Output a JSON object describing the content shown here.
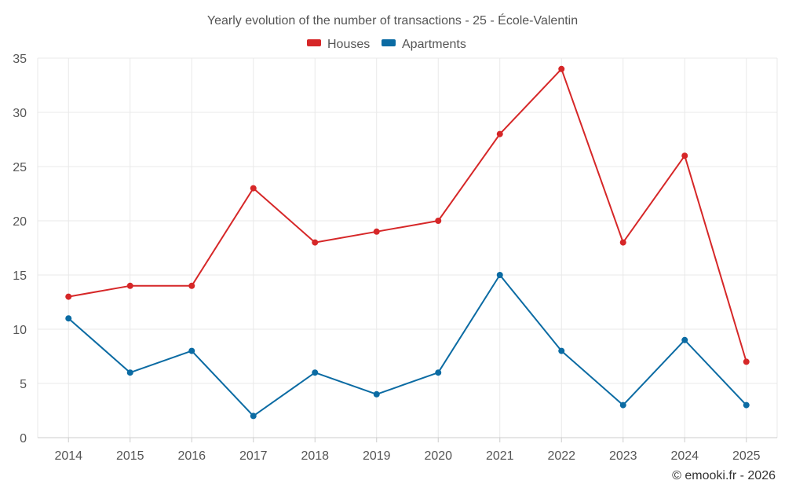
{
  "chart_data": {
    "type": "line",
    "title": "Yearly evolution of the number of transactions - 25 - École-Valentin",
    "xlabel": "",
    "ylabel": "",
    "categories": [
      "2014",
      "2015",
      "2016",
      "2017",
      "2018",
      "2019",
      "2020",
      "2021",
      "2022",
      "2023",
      "2024",
      "2025"
    ],
    "ylim": [
      0,
      35
    ],
    "yticks": [
      0,
      5,
      10,
      15,
      20,
      25,
      30,
      35
    ],
    "grid": true,
    "legend_position": "top-center",
    "series": [
      {
        "name": "Houses",
        "color": "#d62728",
        "values": [
          13,
          14,
          14,
          23,
          18,
          19,
          20,
          28,
          34,
          18,
          26,
          7
        ]
      },
      {
        "name": "Apartments",
        "color": "#0b6ba3",
        "values": [
          11,
          6,
          8,
          2,
          6,
          4,
          6,
          15,
          8,
          3,
          9,
          3
        ]
      }
    ]
  },
  "credit": "© emooki.fr - 2026"
}
